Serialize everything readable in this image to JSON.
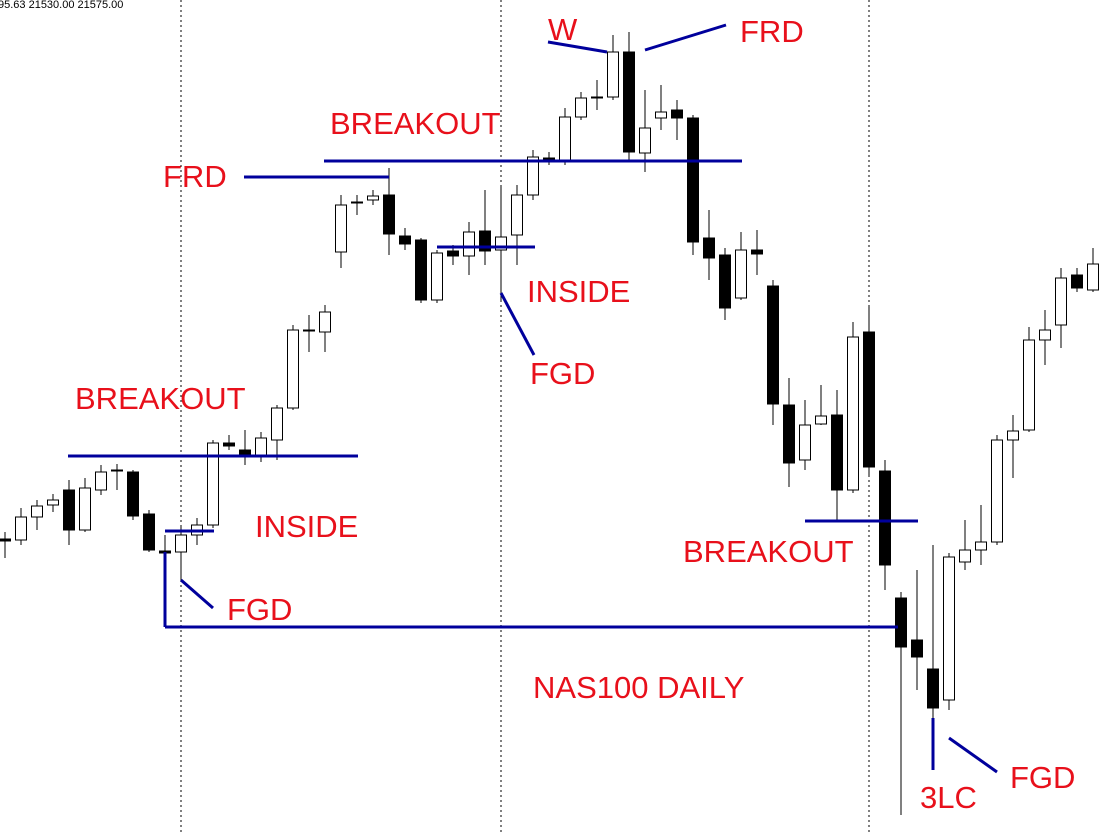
{
  "chart_data": {
    "type": "candlestick",
    "title": "NAS100 DAILY",
    "header": "95.63 21530.00 21575.00",
    "annotations": [
      "W",
      "FRD",
      "BREAKOUT",
      "FRD",
      "INSIDE",
      "FGD",
      "BREAKOUT",
      "INSIDE",
      "FGD",
      "BREAKOUT",
      "3LC",
      "FGD"
    ],
    "annotation_color": "#e8101b",
    "up_color": "#ffffff",
    "down_color": "#000000",
    "ylim": [
      20530,
      22200
    ],
    "open": [
      21122,
      21120,
      21166,
      21190,
      21220,
      21140,
      21220,
      21258,
      21256,
      21172,
      21098,
      21096,
      21130,
      21150,
      21314,
      21300,
      21290,
      21320,
      21384,
      21538,
      21536,
      21696,
      21794,
      21800,
      21810,
      21728,
      21720,
      21600,
      21698,
      21688,
      21738,
      21700,
      21730,
      21810,
      21884,
      21876,
      21966,
      22004,
      22006,
      22096,
      21894,
      21964,
      21980,
      21964,
      21724,
      21690,
      21604,
      21700,
      21628,
      21390,
      21280,
      21352,
      21370,
      21220,
      21536,
      21258,
      21004,
      20920,
      20862,
      20800,
      21076,
      21100,
      21116,
      21320,
      21340,
      21520,
      21550,
      21650,
      21620
    ],
    "high": [
      21136,
      21184,
      21200,
      21212,
      21240,
      21244,
      21270,
      21272,
      21260,
      21180,
      21130,
      21146,
      21164,
      21320,
      21330,
      21340,
      21336,
      21390,
      21550,
      21570,
      21590,
      21810,
      21810,
      21820,
      21864,
      21744,
      21724,
      21700,
      21710,
      21756,
      21820,
      21830,
      21830,
      21900,
      21896,
      21984,
      22016,
      22040,
      22130,
      22136,
      22020,
      22030,
      22000,
      21970,
      21780,
      21704,
      21736,
      21740,
      21640,
      21444,
      21400,
      21430,
      21420,
      21556,
      21590,
      21280,
      21016,
      21060,
      21110,
      21094,
      21160,
      21190,
      21330,
      21370,
      21546,
      21580,
      21664,
      21664,
      21704
    ],
    "low": [
      21084,
      21110,
      21140,
      21176,
      21110,
      21136,
      21210,
      21220,
      21160,
      21096,
      21070,
      21040,
      21110,
      21144,
      21300,
      21270,
      21276,
      21280,
      21380,
      21496,
      21496,
      21664,
      21770,
      21790,
      21690,
      21700,
      21594,
      21594,
      21670,
      21650,
      21670,
      21600,
      21670,
      21800,
      21870,
      21870,
      21960,
      21980,
      22000,
      21880,
      21856,
      21940,
      21920,
      21690,
      21640,
      21560,
      21600,
      21650,
      21350,
      21226,
      21260,
      21350,
      21160,
      21214,
      21250,
      21020,
      20570,
      20820,
      20764,
      20780,
      21060,
      21070,
      21110,
      21244,
      21336,
      21470,
      21504,
      21616,
      21616
    ],
    "close": [
      21118,
      21166,
      21188,
      21200,
      21140,
      21224,
      21256,
      21260,
      21168,
      21100,
      21094,
      21130,
      21150,
      21314,
      21308,
      21288,
      21324,
      21384,
      21540,
      21540,
      21576,
      21790,
      21796,
      21808,
      21732,
      21712,
      21600,
      21694,
      21688,
      21736,
      21698,
      21726,
      21810,
      21886,
      21876,
      21966,
      22004,
      22006,
      22096,
      21896,
      21944,
      21976,
      21964,
      21716,
      21684,
      21584,
      21700,
      21692,
      21392,
      21274,
      21350,
      21368,
      21220,
      21526,
      21266,
      21070,
      20906,
      20886,
      20784,
      21086,
      21100,
      21116,
      21320,
      21338,
      21520,
      21540,
      21644,
      21624,
      21672
    ]
  }
}
